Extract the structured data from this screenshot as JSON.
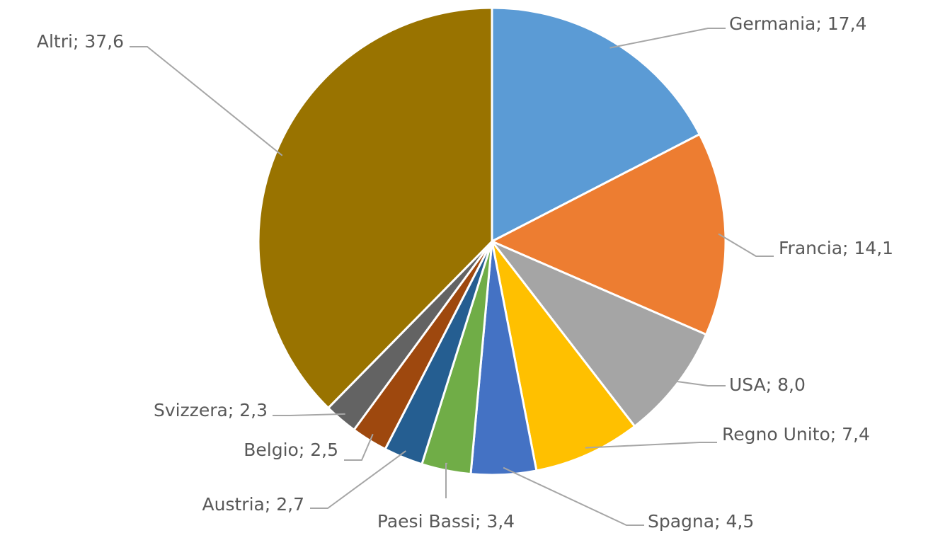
{
  "chart_data": {
    "type": "pie",
    "categories": [
      "Germania",
      "Francia",
      "USA",
      "Regno Unito",
      "Spagna",
      "Paesi Bassi",
      "Austria",
      "Belgio",
      "Svizzera",
      "Altri"
    ],
    "values": [
      17.4,
      14.1,
      8.0,
      7.4,
      4.5,
      3.4,
      2.7,
      2.5,
      2.3,
      37.6
    ],
    "value_labels": [
      "17,4",
      "14,1",
      "8,0",
      "7,4",
      "4,5",
      "3,4",
      "2,7",
      "2,5",
      "2,3",
      "37,6"
    ],
    "label_separator": "; ",
    "colors": [
      "#5b9bd5",
      "#ed7d31",
      "#a5a5a5",
      "#ffc000",
      "#4472c4",
      "#70ad47",
      "#255e91",
      "#9e480e",
      "#636363",
      "#997300"
    ]
  }
}
